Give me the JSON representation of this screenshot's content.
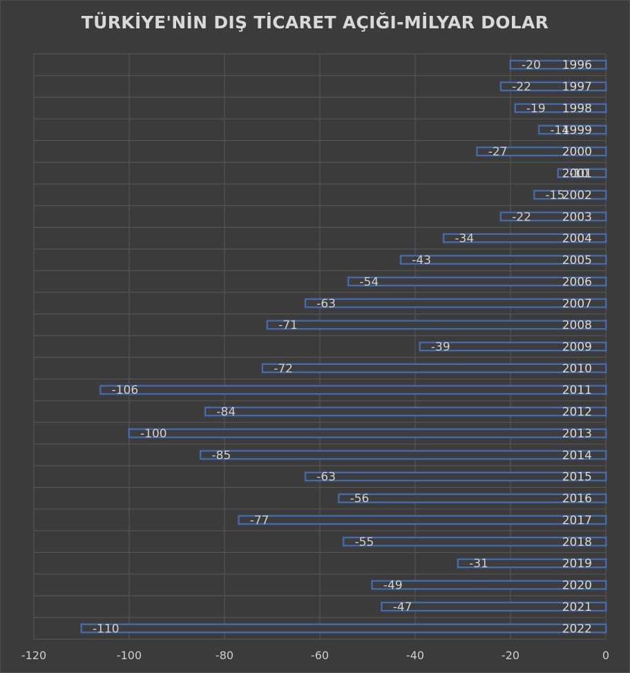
{
  "chart_data": {
    "type": "bar",
    "orientation": "horizontal",
    "title": "TÜRKİYE'NİN DIŞ TİCARET AÇIĞI-MİLYAR DOLAR",
    "categories": [
      "1996",
      "1997",
      "1998",
      "1999",
      "2000",
      "2001",
      "2002",
      "2003",
      "2004",
      "2005",
      "2006",
      "2007",
      "2008",
      "2009",
      "2010",
      "2011",
      "2012",
      "2013",
      "2014",
      "2015",
      "2016",
      "2017",
      "2018",
      "2019",
      "2020",
      "2021",
      "2022"
    ],
    "values": [
      -20,
      -22,
      -19,
      -14,
      -27,
      -10,
      -15,
      -22,
      -34,
      -43,
      -54,
      -63,
      -71,
      -39,
      -72,
      -106,
      -84,
      -100,
      -85,
      -63,
      -56,
      -77,
      -55,
      -31,
      -49,
      -47,
      -110
    ],
    "xlim": [
      -120,
      0
    ],
    "xticks": [
      -120,
      -100,
      -80,
      -60,
      -40,
      -20,
      0
    ],
    "xtick_labels": [
      "-120",
      "-100",
      "-80",
      "-60",
      "-40",
      "-20",
      "0"
    ],
    "grid": true,
    "legend": "none",
    "colors": {
      "bar_outline": "#4472c4",
      "background": "#3b3b3b",
      "grid": "#595959",
      "text": "#d9d9d9"
    }
  }
}
